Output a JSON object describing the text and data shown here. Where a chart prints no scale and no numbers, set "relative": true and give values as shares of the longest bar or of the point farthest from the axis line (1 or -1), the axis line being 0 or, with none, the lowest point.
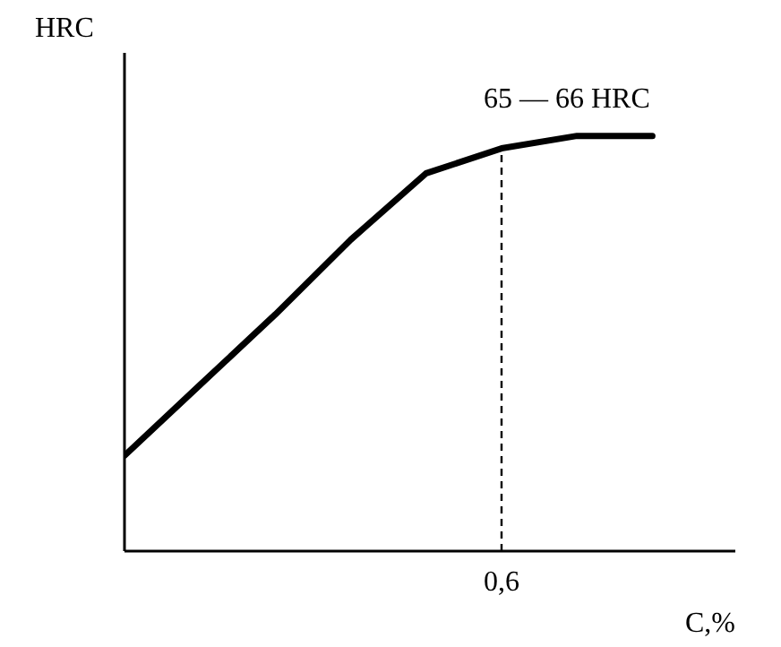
{
  "chart_data": {
    "type": "line",
    "relative": true,
    "xlabel": "C,%",
    "ylabel": "HRC",
    "categories": [
      null,
      null,
      null,
      null,
      null,
      null,
      null,
      null
    ],
    "series": [
      {
        "color": "#000000",
        "values": [
          0.23,
          0.4,
          0.57,
          0.75,
          0.91,
          0.97,
          1.0,
          1.0
        ]
      }
    ],
    "grid": false,
    "marker": "none",
    "line_style": "solid",
    "annotations": [
      "0,6",
      {
        "text": "65 — 66 HRC",
        "y": 1.0
      }
    ]
  }
}
